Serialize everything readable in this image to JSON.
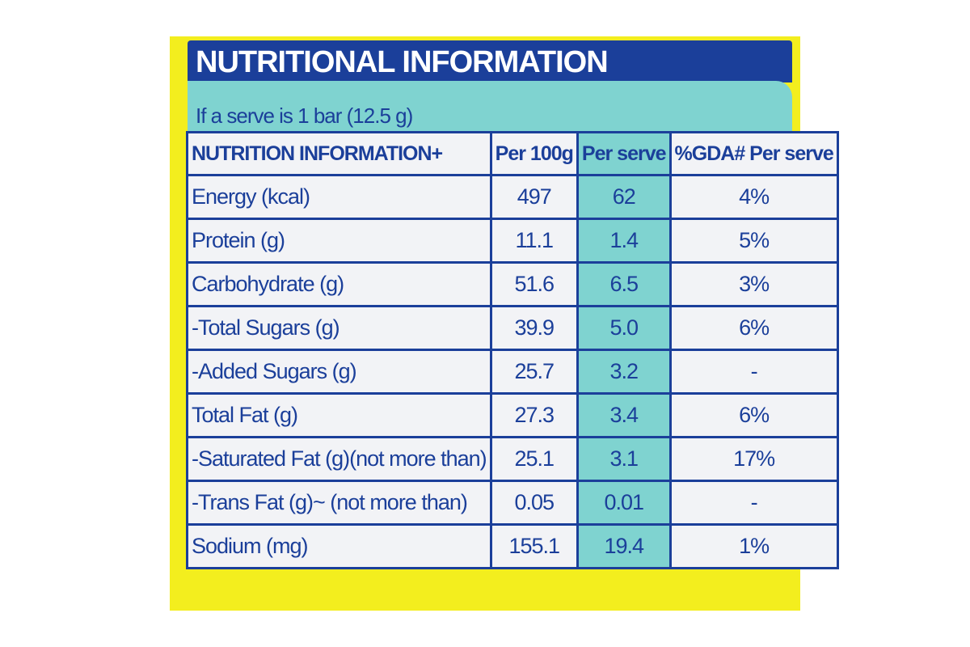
{
  "header": {
    "title": "NUTRITIONAL INFORMATION",
    "subtitle": "If a serve is 1 bar (12.5 g)"
  },
  "table": {
    "columns": [
      "NUTRITION INFORMATION+",
      "Per 100g",
      "Per serve",
      "%GDA# Per serve"
    ],
    "rows": [
      [
        "Energy (kcal)",
        "497",
        "62",
        "4%"
      ],
      [
        "Protein (g)",
        "11.1",
        "1.4",
        "5%"
      ],
      [
        "Carbohydrate (g)",
        "51.6",
        "6.5",
        "3%"
      ],
      [
        "-Total Sugars (g)",
        "39.9",
        "5.0",
        "6%"
      ],
      [
        "-Added Sugars (g)",
        "25.7",
        "3.2",
        "-"
      ],
      [
        "Total Fat (g)",
        "27.3",
        "3.4",
        "6%"
      ],
      [
        "-Saturated Fat (g)(not more than)",
        "25.1",
        "3.1",
        "17%"
      ],
      [
        "-Trans Fat (g)~ (not more than)",
        "0.05",
        "0.01",
        "-"
      ],
      [
        "Sodium (mg)",
        "155.1",
        "19.4",
        "1%"
      ]
    ]
  }
}
